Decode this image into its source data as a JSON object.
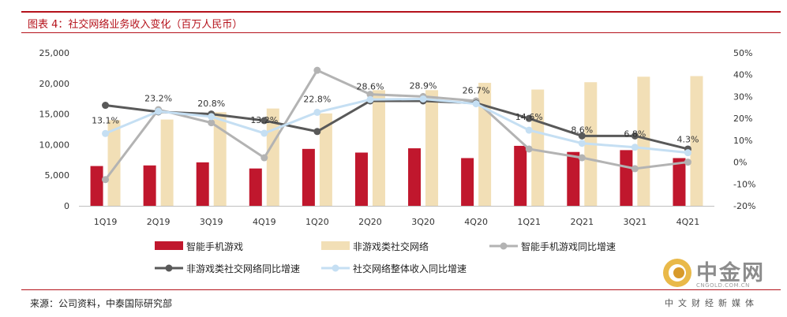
{
  "title": "图表 4：社交网络业务收入变化（百万人民币）",
  "source": "来源：公司资料，中泰国际研究部",
  "watermark": {
    "logo_text": "中金网",
    "url": "CNGOLD.COM.CN",
    "subtitle": "中文财经新媒体"
  },
  "colors": {
    "accent": "#b5121b",
    "bar_mobile": "#c0172d",
    "bar_social": "#f2dfb6",
    "line_mobile_yoy": "#b3b3b3",
    "line_social_yoy": "#595959",
    "line_total_yoy": "#c5dff3"
  },
  "chart_data": {
    "type": "bar",
    "categories": [
      "1Q19",
      "2Q19",
      "3Q19",
      "4Q19",
      "1Q20",
      "2Q20",
      "3Q20",
      "4Q20",
      "1Q21",
      "2Q21",
      "3Q21",
      "4Q21"
    ],
    "left_axis": {
      "ylim": [
        0,
        25000
      ],
      "ticks": [
        "0",
        "5,000",
        "10,000",
        "15,000",
        "20,000",
        "25,000"
      ]
    },
    "right_axis": {
      "ylim": [
        -20,
        50
      ],
      "ticks": [
        "-20%",
        "-10%",
        "0%",
        "10%",
        "20%",
        "30%",
        "40%",
        "50%"
      ]
    },
    "series": [
      {
        "name": "智能手机游戏",
        "type": "bar",
        "axis": "left",
        "values": [
          6500,
          6600,
          7100,
          6100,
          9300,
          8700,
          9400,
          7800,
          9800,
          8800,
          9100,
          7800
        ]
      },
      {
        "name": "非游戏类社交网络",
        "type": "bar",
        "axis": "left",
        "values": [
          14000,
          14100,
          15300,
          15900,
          15100,
          18900,
          18900,
          20100,
          19000,
          20200,
          21100,
          21200
        ]
      },
      {
        "name": "智能手机游戏同比增速",
        "type": "line",
        "axis": "right",
        "values": [
          -8,
          24,
          18,
          2,
          42,
          31,
          30,
          28,
          6,
          2,
          -3,
          0
        ]
      },
      {
        "name": "非游戏类社交网络同比增速",
        "type": "line",
        "axis": "right",
        "values": [
          26,
          23,
          22,
          19,
          14,
          28,
          28,
          27,
          20,
          12,
          12,
          6
        ]
      },
      {
        "name": "社交网络整体收入同比增速",
        "type": "line",
        "axis": "right",
        "values": [
          13.1,
          23.2,
          20.8,
          13.2,
          22.8,
          28.6,
          28.9,
          26.7,
          14.6,
          8.6,
          6.8,
          4.3
        ]
      }
    ],
    "data_labels": [
      "13.1%",
      "23.2%",
      "20.8%",
      "13.2%",
      "22.8%",
      "28.6%",
      "28.9%",
      "26.7%",
      "14.6%",
      "8.6%",
      "6.8%",
      "4.3%"
    ],
    "legend_placement": "bottom",
    "grid": false
  }
}
